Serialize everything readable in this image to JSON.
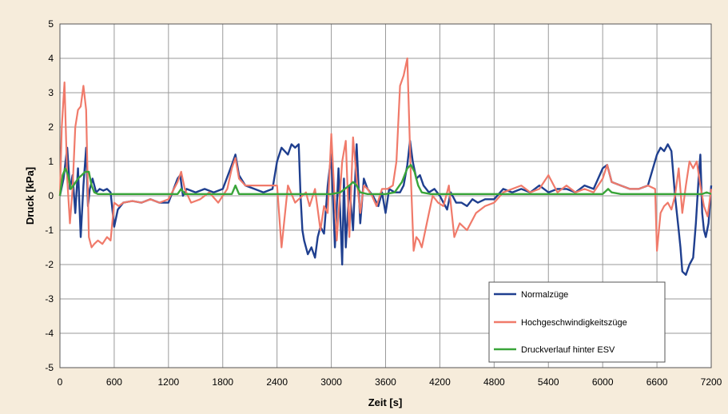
{
  "chart_data": {
    "type": "line",
    "title": "",
    "xlabel": "Zeit [s]",
    "ylabel": "Druck [kPa]",
    "xlim": [
      0,
      7200
    ],
    "ylim": [
      -5,
      5
    ],
    "xticks": [
      0,
      600,
      1200,
      1800,
      2400,
      3000,
      3600,
      4200,
      4800,
      5400,
      6000,
      6600,
      7200
    ],
    "xtick_labels": [
      "0",
      "600",
      "1200",
      "1800",
      "2400",
      "3000",
      "3600",
      "4200",
      "4800",
      "5400",
      "6000",
      "6600",
      "7200"
    ],
    "yticks": [
      5,
      4,
      3,
      2,
      1,
      0,
      -1,
      -2,
      -3,
      -4,
      -5
    ],
    "yticks_labels": [
      "5",
      "4",
      "3",
      "2",
      "1",
      "0",
      "-1",
      "-2",
      "-3",
      "-4",
      "-5"
    ],
    "grid": true,
    "legend_position": "bottom-right",
    "background_color": "#f6ecdb",
    "plot_color": "#ffffff",
    "grid_color": "#9a9a9a",
    "series": [
      {
        "name": "Normalzüge",
        "color": "#1f3f8f",
        "x": [
          0,
          40,
          80,
          110,
          140,
          170,
          200,
          230,
          260,
          290,
          310,
          330,
          360,
          400,
          440,
          480,
          520,
          560,
          600,
          640,
          700,
          800,
          900,
          1000,
          1100,
          1200,
          1300,
          1330,
          1360,
          1400,
          1500,
          1600,
          1700,
          1800,
          1900,
          1940,
          1980,
          2050,
          2150,
          2250,
          2350,
          2400,
          2450,
          2520,
          2560,
          2600,
          2640,
          2660,
          2680,
          2700,
          2740,
          2780,
          2820,
          2850,
          2880,
          2920,
          2960,
          3000,
          3040,
          3080,
          3120,
          3140,
          3160,
          3200,
          3240,
          3280,
          3320,
          3360,
          3400,
          3460,
          3520,
          3560,
          3600,
          3640,
          3700,
          3760,
          3800,
          3840,
          3870,
          3900,
          3940,
          3980,
          4020,
          4080,
          4140,
          4200,
          4240,
          4280,
          4320,
          4380,
          4440,
          4500,
          4560,
          4620,
          4700,
          4800,
          4900,
          5000,
          5100,
          5200,
          5300,
          5400,
          5500,
          5600,
          5700,
          5800,
          5900,
          6000,
          6050,
          6100,
          6200,
          6300,
          6400,
          6500,
          6600,
          6640,
          6680,
          6720,
          6760,
          6800,
          6840,
          6860,
          6880,
          6920,
          6960,
          7000,
          7030,
          7060,
          7080,
          7100,
          7120,
          7140,
          7170,
          7200
        ],
        "y": [
          0.0,
          0.5,
          1.4,
          0.2,
          0.6,
          -0.5,
          0.8,
          -1.2,
          0.3,
          1.4,
          -0.3,
          0.2,
          0.5,
          0.1,
          0.2,
          0.15,
          0.2,
          0.1,
          -0.9,
          -0.4,
          -0.2,
          -0.15,
          -0.2,
          -0.1,
          -0.2,
          -0.2,
          0.5,
          0.6,
          0.0,
          0.2,
          0.1,
          0.2,
          0.1,
          0.2,
          0.9,
          1.2,
          0.6,
          0.3,
          0.2,
          0.1,
          0.2,
          1.0,
          1.4,
          1.2,
          1.5,
          1.4,
          1.5,
          0.0,
          -1.0,
          -1.3,
          -1.7,
          -1.5,
          -1.8,
          -1.2,
          -0.9,
          -1.1,
          0.3,
          1.2,
          -1.5,
          0.8,
          -2.0,
          0.5,
          -1.5,
          0.3,
          -1.0,
          1.5,
          -0.8,
          0.5,
          0.2,
          0.0,
          -0.3,
          0.1,
          -0.5,
          0.2,
          0.1,
          0.1,
          0.3,
          0.9,
          1.6,
          1.0,
          0.5,
          0.6,
          0.3,
          0.1,
          0.2,
          0.0,
          -0.2,
          -0.4,
          0.1,
          -0.2,
          -0.2,
          -0.3,
          -0.1,
          -0.2,
          -0.1,
          -0.1,
          0.2,
          0.1,
          0.2,
          0.1,
          0.3,
          0.1,
          0.2,
          0.2,
          0.1,
          0.3,
          0.2,
          0.8,
          0.9,
          0.4,
          0.3,
          0.2,
          0.2,
          0.3,
          1.2,
          1.4,
          1.3,
          1.5,
          1.3,
          0.0,
          -1.0,
          -1.5,
          -2.2,
          -2.3,
          -2.0,
          -1.8,
          -0.8,
          0.5,
          1.2,
          -0.5,
          -1.0,
          -1.2,
          -0.8,
          0.3
        ]
      },
      {
        "name": "Hochgeschwindigkeitszüge",
        "color": "#f07a6a",
        "x": [
          0,
          20,
          50,
          80,
          110,
          140,
          170,
          200,
          230,
          260,
          290,
          320,
          350,
          380,
          420,
          470,
          520,
          560,
          600,
          650,
          700,
          800,
          900,
          1000,
          1100,
          1200,
          1300,
          1340,
          1380,
          1450,
          1550,
          1650,
          1750,
          1850,
          1900,
          1940,
          1980,
          2050,
          2150,
          2250,
          2350,
          2400,
          2450,
          2520,
          2600,
          2680,
          2720,
          2760,
          2820,
          2880,
          2920,
          2960,
          3000,
          3060,
          3120,
          3160,
          3200,
          3240,
          3280,
          3320,
          3360,
          3400,
          3450,
          3500,
          3560,
          3620,
          3680,
          3720,
          3760,
          3800,
          3840,
          3880,
          3910,
          3940,
          3970,
          4000,
          4040,
          4080,
          4120,
          4180,
          4240,
          4300,
          4360,
          4420,
          4500,
          4600,
          4700,
          4800,
          4900,
          5000,
          5100,
          5200,
          5300,
          5400,
          5500,
          5600,
          5700,
          5800,
          5900,
          6000,
          6050,
          6100,
          6200,
          6300,
          6400,
          6500,
          6580,
          6600,
          6640,
          6680,
          6720,
          6760,
          6800,
          6840,
          6880,
          6920,
          6960,
          7000,
          7040,
          7080,
          7120,
          7160,
          7200
        ],
        "y": [
          0.0,
          2.0,
          3.3,
          0.5,
          -0.8,
          0.2,
          2.0,
          2.5,
          2.6,
          3.2,
          2.5,
          -1.2,
          -1.5,
          -1.4,
          -1.3,
          -1.4,
          -1.2,
          -1.3,
          -0.2,
          -0.3,
          -0.2,
          -0.15,
          -0.2,
          -0.1,
          -0.2,
          -0.1,
          0.4,
          0.7,
          0.2,
          -0.2,
          -0.1,
          0.1,
          -0.2,
          0.2,
          0.8,
          1.1,
          0.5,
          0.3,
          0.3,
          0.3,
          0.3,
          0.3,
          -1.5,
          0.3,
          -0.2,
          0.0,
          0.1,
          -0.3,
          0.2,
          -1.0,
          -0.3,
          -0.5,
          1.8,
          -1.3,
          1.0,
          1.6,
          -1.2,
          1.7,
          0.5,
          -0.5,
          0.3,
          0.2,
          0.0,
          -0.3,
          0.2,
          0.2,
          0.3,
          1.0,
          3.2,
          3.5,
          4.0,
          0.5,
          -1.6,
          -1.2,
          -1.3,
          -1.5,
          -1.0,
          -0.5,
          0.0,
          -0.2,
          -0.3,
          0.3,
          -1.2,
          -0.8,
          -1.0,
          -0.5,
          -0.3,
          -0.2,
          0.1,
          0.2,
          0.3,
          0.1,
          0.2,
          0.6,
          0.1,
          0.3,
          0.1,
          0.2,
          0.1,
          0.5,
          0.9,
          0.4,
          0.3,
          0.2,
          0.2,
          0.3,
          0.2,
          -1.6,
          -0.5,
          -0.3,
          -0.2,
          -0.4,
          0.0,
          0.8,
          -0.5,
          0.3,
          1.0,
          0.8,
          1.0,
          0.3,
          -0.3,
          -0.6,
          0.2
        ]
      },
      {
        "name": "Druckverlauf hinter ESV",
        "color": "#3aa53a",
        "x": [
          0,
          30,
          60,
          90,
          120,
          150,
          200,
          240,
          280,
          320,
          350,
          380,
          420,
          480,
          600,
          800,
          1000,
          1200,
          1300,
          1340,
          1380,
          1500,
          1800,
          1900,
          1940,
          1980,
          2100,
          2400,
          2700,
          3000,
          3100,
          3200,
          3240,
          3280,
          3320,
          3400,
          3600,
          3700,
          3780,
          3840,
          3880,
          3920,
          3960,
          4000,
          4100,
          4200,
          4500,
          5000,
          5500,
          6000,
          6060,
          6100,
          6200,
          6600,
          6700,
          6900,
          7100,
          7150,
          7200
        ],
        "y": [
          0.0,
          0.6,
          0.8,
          0.6,
          0.2,
          0.3,
          0.5,
          0.6,
          0.7,
          0.7,
          0.3,
          0.1,
          0.05,
          0.05,
          0.05,
          0.05,
          0.05,
          0.05,
          0.05,
          0.2,
          0.05,
          0.05,
          0.05,
          0.05,
          0.3,
          0.05,
          0.05,
          0.05,
          0.05,
          0.05,
          0.1,
          0.3,
          0.4,
          0.3,
          0.1,
          0.05,
          0.05,
          0.1,
          0.4,
          0.8,
          0.9,
          0.7,
          0.3,
          0.1,
          0.05,
          0.05,
          0.05,
          0.05,
          0.05,
          0.05,
          0.2,
          0.1,
          0.05,
          0.05,
          0.05,
          0.05,
          0.05,
          0.1,
          0.05
        ]
      }
    ]
  }
}
